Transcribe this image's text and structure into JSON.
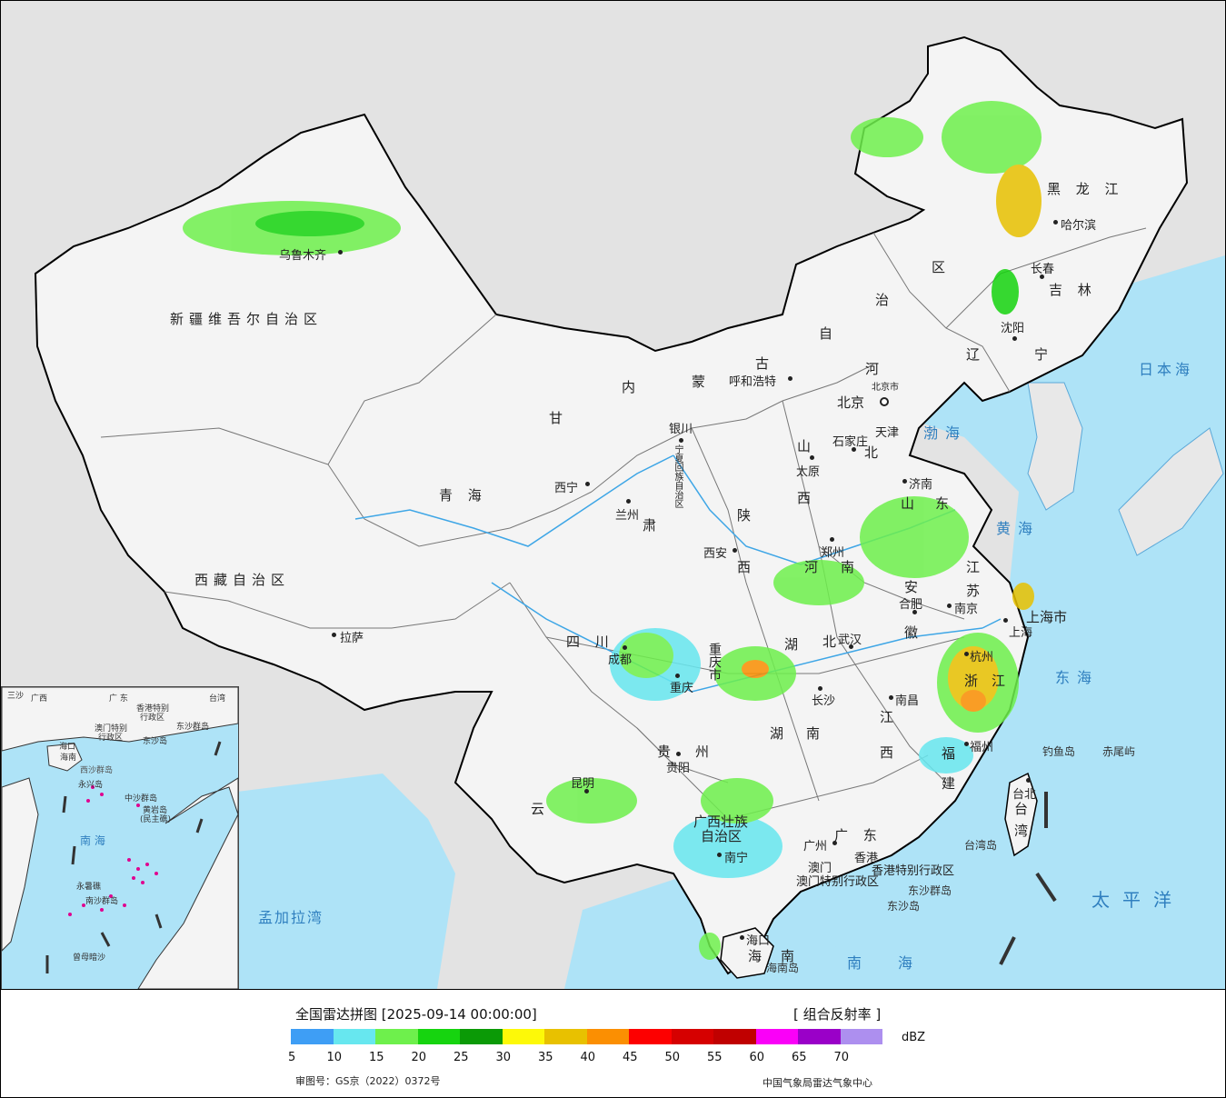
{
  "colors": {
    "ocean": "#aee3f7",
    "land_bg": "#e3e3e3",
    "china_land": "#f4f4f4",
    "border": "#000000"
  },
  "map": {
    "provinces": [
      {
        "id": "xinjiang",
        "label": "新疆维吾尔自治区"
      },
      {
        "id": "xizang",
        "label": "西藏自治区"
      },
      {
        "id": "qinghai",
        "label": "青   海"
      },
      {
        "id": "gansu",
        "label": "甘"
      },
      {
        "id": "sichuan",
        "label": "四   川"
      },
      {
        "id": "yunnan",
        "label": "云"
      },
      {
        "id": "neimenggu-1",
        "label": "内"
      },
      {
        "id": "neimenggu-2",
        "label": "蒙"
      },
      {
        "id": "neimenggu-3",
        "label": "古"
      },
      {
        "id": "neimenggu-4",
        "label": "自"
      },
      {
        "id": "neimenggu-5",
        "label": "治"
      },
      {
        "id": "neimenggu-6",
        "label": "区"
      },
      {
        "id": "heilongjiang",
        "label": "黑 龙 江"
      },
      {
        "id": "jilin",
        "label": "吉 林"
      },
      {
        "id": "liaoning-1",
        "label": "辽"
      },
      {
        "id": "liaoning-2",
        "label": "宁"
      },
      {
        "id": "hebei-1",
        "label": "河"
      },
      {
        "id": "hebei-2",
        "label": "北"
      },
      {
        "id": "shanxi-1",
        "label": "山"
      },
      {
        "id": "shanxi-2",
        "label": "西"
      },
      {
        "id": "shaanxi-1",
        "label": "陕"
      },
      {
        "id": "shaanxi-2",
        "label": "西"
      },
      {
        "id": "henan-1",
        "label": "河"
      },
      {
        "id": "henan-2",
        "label": "南"
      },
      {
        "id": "shandong-1",
        "label": "山"
      },
      {
        "id": "shandong-2",
        "label": "东"
      },
      {
        "id": "jiangsu-1",
        "label": "江"
      },
      {
        "id": "jiangsu-2",
        "label": "苏"
      },
      {
        "id": "anhui-1",
        "label": "安"
      },
      {
        "id": "anhui-2",
        "label": "徽"
      },
      {
        "id": "hubei-1",
        "label": "湖"
      },
      {
        "id": "hubei-2",
        "label": "北"
      },
      {
        "id": "hunan-1",
        "label": "湖"
      },
      {
        "id": "hunan-2",
        "label": "南"
      },
      {
        "id": "jiangxi-1",
        "label": "江"
      },
      {
        "id": "jiangxi-2",
        "label": "西"
      },
      {
        "id": "zhejiang-1",
        "label": "浙"
      },
      {
        "id": "zhejiang-2",
        "label": "江"
      },
      {
        "id": "fujian-1",
        "label": "福"
      },
      {
        "id": "fujian-2",
        "label": "建"
      },
      {
        "id": "guizhou-1",
        "label": "贵"
      },
      {
        "id": "guizhou-2",
        "label": "州"
      },
      {
        "id": "chongqing",
        "label": "重庆市"
      },
      {
        "id": "guangxi-1",
        "label": "广西壮族"
      },
      {
        "id": "guangxi-2",
        "label": "自治区"
      },
      {
        "id": "guangdong",
        "label": "广 东"
      },
      {
        "id": "hainan-1",
        "label": "海"
      },
      {
        "id": "hainan-2",
        "label": "南"
      },
      {
        "id": "shanghai",
        "label": "上海市"
      },
      {
        "id": "taiwan-1",
        "label": "台"
      },
      {
        "id": "taiwan-2",
        "label": "湾"
      },
      {
        "id": "ningxia",
        "label": "宁夏回族自治区"
      },
      {
        "id": "tianjin",
        "label": "天津"
      },
      {
        "id": "beijing-small",
        "label": "北京市"
      },
      {
        "id": "hongkong",
        "label": "香港特别行政区"
      },
      {
        "id": "macau",
        "label": "澳门特别行政区"
      },
      {
        "id": "gansu-2",
        "label": "肃"
      }
    ],
    "cities": [
      {
        "id": "urumqi",
        "label": "乌鲁木齐"
      },
      {
        "id": "lhasa",
        "label": "拉萨"
      },
      {
        "id": "xining",
        "label": "西宁"
      },
      {
        "id": "lanzhou",
        "label": "兰州"
      },
      {
        "id": "yinchuan",
        "label": "银川"
      },
      {
        "id": "hohhot",
        "label": "呼和浩特"
      },
      {
        "id": "beijing",
        "label": "北京"
      },
      {
        "id": "shijiazhuang",
        "label": "石家庄"
      },
      {
        "id": "taiyuan",
        "label": "太原"
      },
      {
        "id": "jinan",
        "label": "济南"
      },
      {
        "id": "zhengzhou",
        "label": "郑州"
      },
      {
        "id": "xian",
        "label": "西安"
      },
      {
        "id": "hefei",
        "label": "合肥"
      },
      {
        "id": "nanjing",
        "label": "南京"
      },
      {
        "id": "wuhan",
        "label": "武汉"
      },
      {
        "id": "chengdu",
        "label": "成都"
      },
      {
        "id": "chongqing-city",
        "label": "重庆"
      },
      {
        "id": "changsha",
        "label": "长沙"
      },
      {
        "id": "nanchang",
        "label": "南昌"
      },
      {
        "id": "hangzhou",
        "label": "杭州"
      },
      {
        "id": "fuzhou",
        "label": "福州"
      },
      {
        "id": "guiyang",
        "label": "贵阳"
      },
      {
        "id": "kunming",
        "label": "昆明"
      },
      {
        "id": "nanning",
        "label": "南宁"
      },
      {
        "id": "guangzhou",
        "label": "广州"
      },
      {
        "id": "haikou",
        "label": "海口"
      },
      {
        "id": "taipei",
        "label": "台北"
      },
      {
        "id": "shenyang",
        "label": "沈阳"
      },
      {
        "id": "changchun",
        "label": "长春"
      },
      {
        "id": "harbin",
        "label": "哈尔滨"
      },
      {
        "id": "shanghai-city",
        "label": "上海"
      },
      {
        "id": "macau-city",
        "label": "澳门"
      },
      {
        "id": "hongkong-city",
        "label": "香港"
      }
    ],
    "seas": [
      {
        "id": "bohai",
        "label": "渤海"
      },
      {
        "id": "huanghai",
        "label": "黄海"
      },
      {
        "id": "donghai",
        "label": "东海"
      },
      {
        "id": "nanhai",
        "label": "南海"
      },
      {
        "id": "taipingyang",
        "label": "太平洋"
      },
      {
        "id": "ribenhai",
        "label": "日本海"
      },
      {
        "id": "mengjialawan",
        "label": "孟加拉湾"
      }
    ],
    "islands": [
      {
        "id": "diaoyudao",
        "label": "钓鱼岛"
      },
      {
        "id": "chiweiyu",
        "label": "赤尾屿"
      },
      {
        "id": "taiwandao",
        "label": "台湾岛"
      },
      {
        "id": "dongsha-qundao",
        "label": "东沙群岛"
      },
      {
        "id": "dongshadao",
        "label": "东沙岛"
      },
      {
        "id": "hainandao",
        "label": "海南岛"
      }
    ],
    "inset_labels": [
      {
        "id": "in-guangdong",
        "label": "广 东"
      },
      {
        "id": "in-guangxi",
        "label": "广西"
      },
      {
        "id": "in-taiwan",
        "label": "台湾"
      },
      {
        "id": "in-hk",
        "label": "香港特别"
      },
      {
        "id": "in-hk2",
        "label": "行政区"
      },
      {
        "id": "in-macau",
        "label": "澳门特别"
      },
      {
        "id": "in-macau2",
        "label": "行政区"
      },
      {
        "id": "in-dongsha",
        "label": "东沙群岛"
      },
      {
        "id": "in-dongsha2",
        "label": "东沙岛"
      },
      {
        "id": "in-haikou",
        "label": "海口"
      },
      {
        "id": "in-hainan",
        "label": "海南"
      },
      {
        "id": "in-xisha",
        "label": "西沙群岛"
      },
      {
        "id": "in-zhongsha",
        "label": "中沙群岛"
      },
      {
        "id": "in-huangyan",
        "label": "黄岩岛"
      },
      {
        "id": "in-minzhu",
        "label": "(民主礁)"
      },
      {
        "id": "in-nanhai",
        "label": "南  海"
      },
      {
        "id": "in-yongshu",
        "label": "永暑礁"
      },
      {
        "id": "in-nansha",
        "label": "南沙群岛"
      },
      {
        "id": "in-zengmu",
        "label": "曾母暗沙"
      },
      {
        "id": "in-sanya",
        "label": "三沙"
      },
      {
        "id": "in-yongxing",
        "label": "永兴岛"
      }
    ]
  },
  "legend": {
    "title": "全国雷达拼图 [2025-09-14 00:00:00]",
    "product": "[ 组合反射率 ]",
    "unit": "dBZ",
    "approval": "审图号：GS京（2022）0372号",
    "source": "中国气象局雷达气象中心",
    "colors": [
      "#3e9ef5",
      "#67e7ef",
      "#6ef04c",
      "#16d40f",
      "#0b9a06",
      "#fdf908",
      "#e8c100",
      "#fb8f02",
      "#fd0000",
      "#d60000",
      "#c00000",
      "#fa00f8",
      "#9a00c8",
      "#ad8fef"
    ],
    "ticks": [
      "5",
      "10",
      "15",
      "20",
      "25",
      "30",
      "35",
      "40",
      "45",
      "50",
      "55",
      "60",
      "65",
      "70"
    ]
  }
}
